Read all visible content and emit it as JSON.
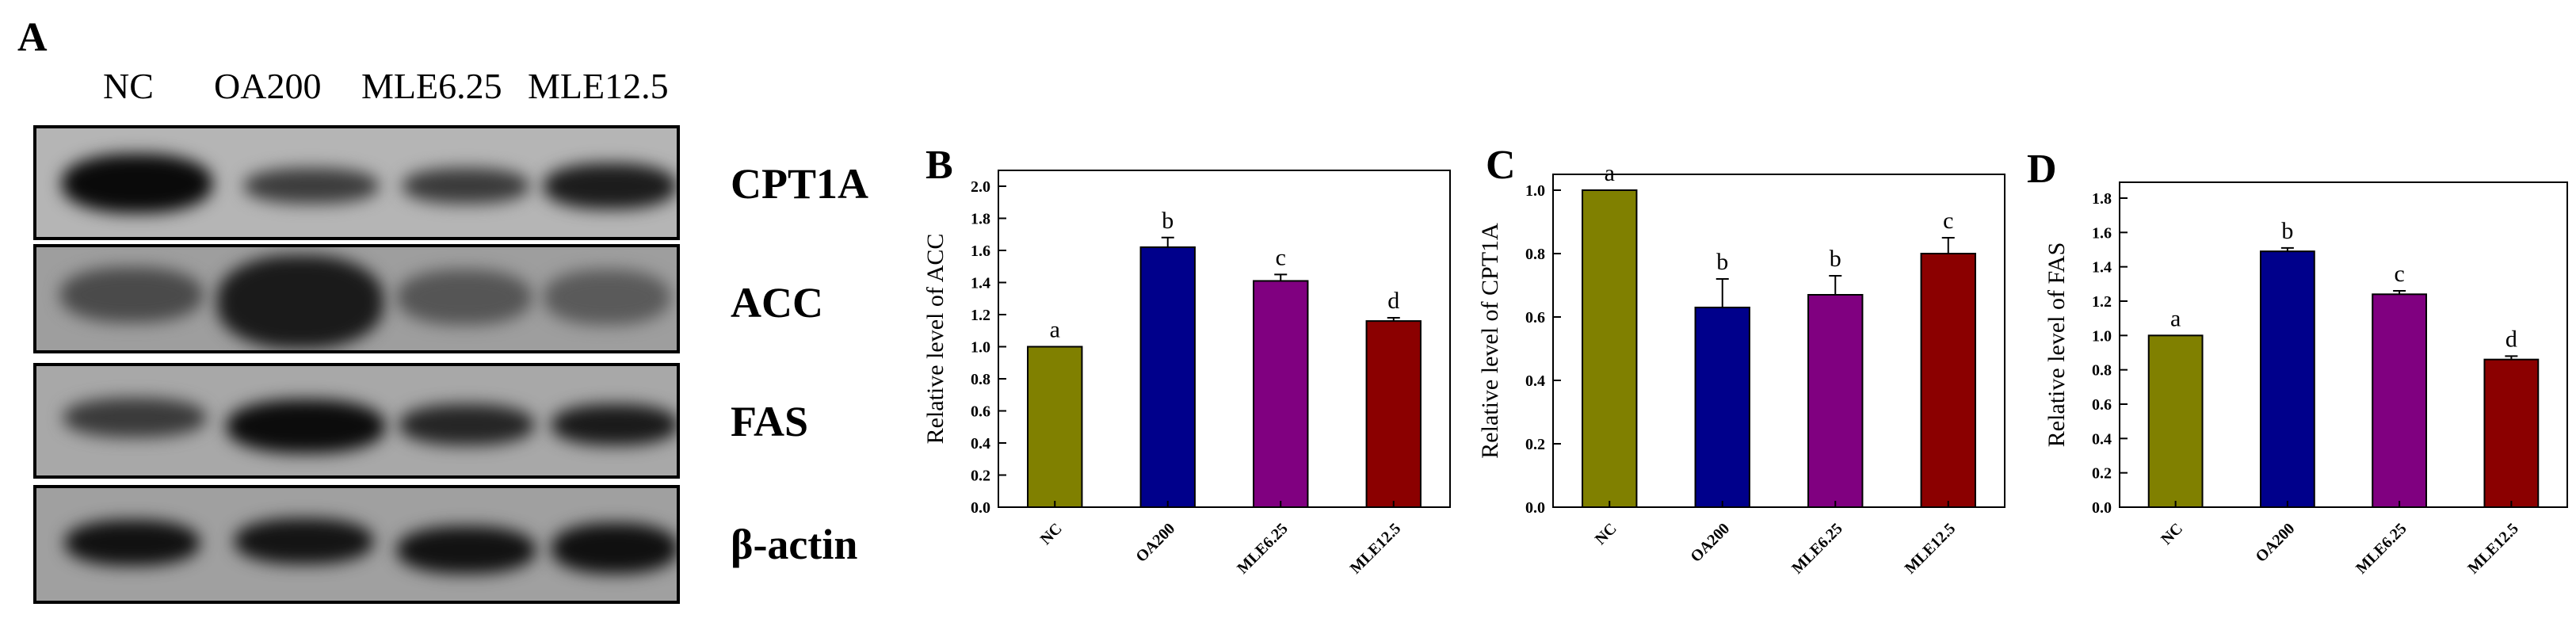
{
  "figure": {
    "panel_a_letter": "A",
    "lanes": [
      "NC",
      "OA200",
      "MLE6.25",
      "MLE12.5"
    ],
    "proteins": [
      "CPT1A",
      "ACC",
      "FAS",
      "β-actin"
    ]
  },
  "chart_data": [
    {
      "type": "bar",
      "panel": "B",
      "title": "",
      "categories": [
        "NC",
        "OA200",
        "MLE6.25",
        "MLE12.5"
      ],
      "values": [
        1.0,
        1.62,
        1.41,
        1.16
      ],
      "errors": [
        0.0,
        0.06,
        0.04,
        0.02
      ],
      "significance": [
        "a",
        "b",
        "c",
        "d"
      ],
      "colors": [
        "#808000",
        "#00008B",
        "#800080",
        "#8B0000"
      ],
      "xlabel": "",
      "ylabel": "Relative level of ACC",
      "ylim": [
        0.0,
        2.0
      ],
      "yticks": [
        "0.0",
        "0.2",
        "0.4",
        "0.6",
        "0.8",
        "1.0",
        "1.2",
        "1.4",
        "1.6",
        "1.8",
        "2.0"
      ],
      "grid": false
    },
    {
      "type": "bar",
      "panel": "C",
      "title": "",
      "categories": [
        "NC",
        "OA200",
        "MLE6.25",
        "MLE12.5"
      ],
      "values": [
        1.0,
        0.63,
        0.67,
        0.8
      ],
      "errors": [
        0.0,
        0.09,
        0.06,
        0.05
      ],
      "significance": [
        "a",
        "b",
        "b",
        "c"
      ],
      "colors": [
        "#808000",
        "#00008B",
        "#800080",
        "#8B0000"
      ],
      "xlabel": "",
      "ylabel": "Relative level of CPT1A",
      "ylim": [
        0.0,
        1.0
      ],
      "yticks": [
        "0.0",
        "0.2",
        "0.4",
        "0.6",
        "0.8",
        "1.0"
      ],
      "grid": false
    },
    {
      "type": "bar",
      "panel": "D",
      "title": "",
      "categories": [
        "NC",
        "OA200",
        "MLE6.25",
        "MLE12.5"
      ],
      "values": [
        1.0,
        1.49,
        1.24,
        0.86
      ],
      "errors": [
        0.0,
        0.02,
        0.02,
        0.02
      ],
      "significance": [
        "a",
        "b",
        "c",
        "d"
      ],
      "colors": [
        "#808000",
        "#00008B",
        "#800080",
        "#8B0000"
      ],
      "xlabel": "",
      "ylabel": "Relative level of FAS",
      "ylim": [
        0.0,
        1.8
      ],
      "yticks": [
        "0.0",
        "0.2",
        "0.4",
        "0.6",
        "0.8",
        "1.0",
        "1.2",
        "1.4",
        "1.6",
        "1.8"
      ],
      "grid": false
    }
  ]
}
